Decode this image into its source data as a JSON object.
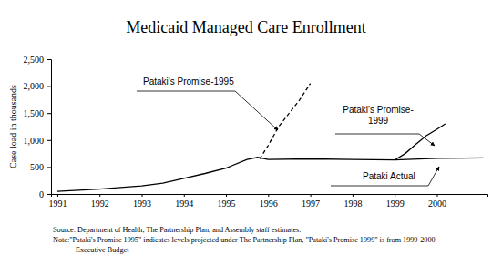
{
  "chart_data": {
    "type": "line",
    "title": "Medicaid Managed Care Enrollment",
    "y_label": "Case load in thousands",
    "xlim": [
      1990.85,
      2001.2
    ],
    "xticks": [
      1991,
      1992,
      1993,
      1994,
      1995,
      1996,
      1997,
      1998,
      1999,
      2000
    ],
    "ylim": [
      0,
      2500
    ],
    "yticks": [
      0,
      500,
      {
        "value": 1000,
        "label": "1,000"
      },
      {
        "value": 1500,
        "label": "1,500"
      },
      {
        "value": 2000,
        "label": "2,000"
      },
      {
        "value": 2500,
        "label": "2,500"
      }
    ],
    "grid": false,
    "series": [
      {
        "name": "Pataki's Promise-1995",
        "color": "#000000",
        "line_style": "dashed",
        "x": [
          1995.8,
          1996,
          1996.25,
          1996.5,
          1996.75,
          1997
        ],
        "values": [
          650,
          900,
          1250,
          1500,
          1750,
          2050
        ]
      },
      {
        "name": "Pataki's Promise-\n1999",
        "color": "#000000",
        "line_style": "solid",
        "x": [
          1999,
          1999.25,
          1999.5,
          1999.75,
          2000,
          2000.2
        ],
        "values": [
          630,
          750,
          920,
          1080,
          1200,
          1300
        ]
      },
      {
        "name": "Pataki Actual",
        "color": "#000000",
        "line_style": "solid",
        "x": [
          1991,
          1992,
          1993,
          1993.5,
          1994,
          1994.5,
          1995,
          1995.5,
          1995.75,
          1996,
          1997,
          1998,
          1999,
          2000,
          2001.1
        ],
        "values": [
          50,
          90,
          150,
          200,
          290,
          380,
          480,
          640,
          680,
          640,
          650,
          640,
          630,
          660,
          670
        ]
      }
    ],
    "source": "Source: Department of Health, The Partnership Plan, and Assembly staff estimates.",
    "note": "Note:\"Pataki's Promise 1995\" indicates levels projected under The Partnership Plan, \"Pataki's Promise 1999\" is from 1999-2000\nExecutive Budget"
  }
}
